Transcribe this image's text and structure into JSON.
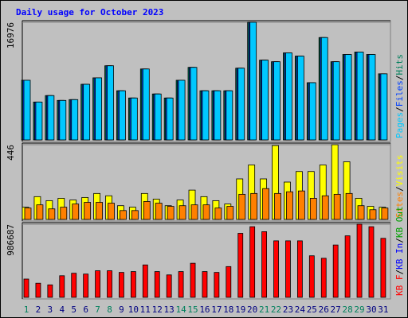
{
  "separator": "/",
  "chart_data": [
    {
      "type": "bar",
      "title": "Daily usage for October 2023",
      "ylim": [
        0,
        16976
      ],
      "yticks": [
        16976
      ],
      "series": [
        {
          "name": "Hits",
          "color": "#00805c",
          "values": [
            8606,
            5466,
            6396,
            5699,
            5815,
            8025,
            8955,
            10700,
            7094,
            6048,
            10234,
            6629,
            6048,
            8606,
            10467,
            7094,
            7094,
            7094,
            10351,
            16976,
            11514,
            11281,
            12560,
            12095,
            8257,
            14770,
            11281,
            12328,
            12677,
            12328,
            9537
          ]
        },
        {
          "name": "Files",
          "color": "#0040ff",
          "values": [
            8606,
            5466,
            6396,
            5699,
            5815,
            8025,
            8955,
            10700,
            7094,
            6048,
            10234,
            6629,
            6048,
            8606,
            10467,
            7094,
            7094,
            7094,
            10351,
            16976,
            11514,
            11281,
            12560,
            12095,
            8257,
            14770,
            11281,
            12328,
            12677,
            12328,
            9537
          ]
        },
        {
          "name": "Pages",
          "color": "#00c8ff",
          "values": [
            8606,
            5466,
            6396,
            5699,
            5815,
            8025,
            8955,
            10700,
            7094,
            6048,
            10234,
            6629,
            6048,
            8606,
            10467,
            7094,
            7094,
            7094,
            10351,
            16976,
            11514,
            11281,
            12560,
            12095,
            8257,
            14770,
            11281,
            12328,
            12677,
            12328,
            9537
          ]
        }
      ]
    },
    {
      "type": "bar",
      "ylim": [
        0,
        446
      ],
      "yticks": [
        446
      ],
      "series": [
        {
          "name": "Visits",
          "color": "#ffff00",
          "values": [
            73,
            136,
            112,
            126,
            116,
            131,
            155,
            141,
            82,
            73,
            155,
            121,
            82,
            116,
            175,
            136,
            112,
            92,
            242,
            325,
            242,
            441,
            223,
            286,
            286,
            325,
            446,
            344,
            126,
            78,
            73
          ]
        },
        {
          "name": "Sites",
          "color": "#ff8000",
          "values": [
            68,
            87,
            63,
            73,
            92,
            102,
            102,
            97,
            53,
            53,
            107,
            97,
            78,
            82,
            87,
            87,
            68,
            78,
            150,
            155,
            184,
            155,
            165,
            170,
            126,
            141,
            150,
            155,
            82,
            58,
            68
          ]
        }
      ]
    },
    {
      "type": "bar",
      "ylim": [
        0,
        986687
      ],
      "yticks": [
        986687
      ],
      "categories": [
        "1",
        "2",
        "3",
        "4",
        "5",
        "6",
        "7",
        "8",
        "9",
        "10",
        "11",
        "12",
        "13",
        "14",
        "15",
        "16",
        "17",
        "18",
        "19",
        "20",
        "21",
        "22",
        "23",
        "24",
        "25",
        "26",
        "27",
        "28",
        "29",
        "30",
        "31"
      ],
      "category_colors": [
        "#00805c",
        "#000080",
        "#000080",
        "#000080",
        "#000080",
        "#000080",
        "#00805c",
        "#00805c",
        "#000080",
        "#000080",
        "#000080",
        "#000080",
        "#000080",
        "#00805c",
        "#00805c",
        "#000080",
        "#000080",
        "#000080",
        "#000080",
        "#000080",
        "#00805c",
        "#00805c",
        "#000080",
        "#000080",
        "#000080",
        "#000080",
        "#000080",
        "#00805c",
        "#00805c",
        "#000080",
        "#000080"
      ],
      "series": [
        {
          "name": "KB F",
          "color": "#ff0000",
          "values": [
            246664,
            190604,
            168180,
            291512,
            325148,
            313936,
            358784,
            358784,
            336360,
            347572,
            437268,
            347572,
            302724,
            347572,
            459692,
            347572,
            336360,
            414844,
            863324,
            953020,
            885748,
            762416,
            762416,
            762416,
            560600,
            526964,
            706356,
            829688,
            986687,
            953020,
            796052
          ]
        }
      ],
      "extra_legend": [
        {
          "name": "KB In",
          "color": "#0000ff"
        },
        {
          "name": "KB Out",
          "color": "#00a000"
        }
      ]
    }
  ]
}
